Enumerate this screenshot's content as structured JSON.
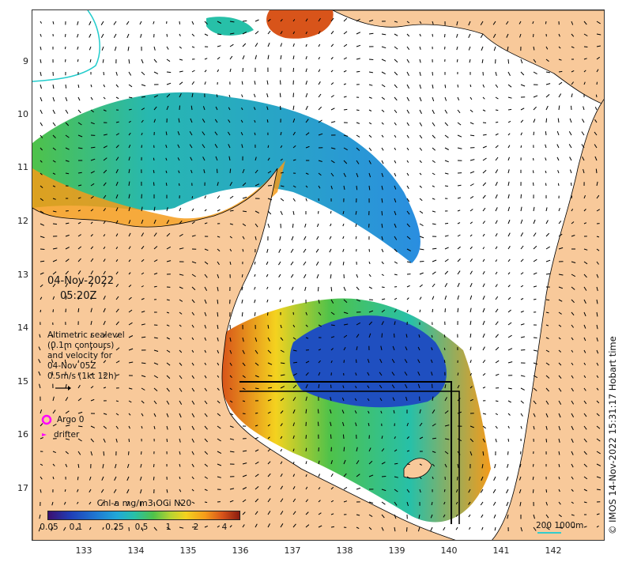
{
  "map": {
    "lat_labels": [
      "9",
      "10",
      "11",
      "12",
      "13",
      "14",
      "15",
      "16",
      "17"
    ],
    "lon_labels": [
      "133",
      "134",
      "135",
      "136",
      "137",
      "138",
      "139",
      "140",
      "141",
      "142"
    ],
    "date": "04-Nov-2022",
    "time": "05:20Z",
    "legend": {
      "line1": "Altimetric sealevel",
      "line2": "(0.1m contours)",
      "line3": "and velocity for",
      "line4": "04-Nov 05Z",
      "line5": "0.5m/s (1kt 12h)"
    },
    "argo_label": "Argo 0",
    "drifter_label": "drifter",
    "colorbar": {
      "title": "Chl-a mg/m3 OCi N20",
      "ticks": [
        "0.05",
        "0.1",
        "0.25",
        "0.5",
        "1",
        "2",
        "4"
      ]
    },
    "scale_bar": "200  1000m",
    "credit": "© IMOS 14-Nov-2022 15:31:17 Hobart time"
  },
  "colors": {
    "land": "#f8c99a",
    "ocean": "#ffffff",
    "argo": "#ff00ff",
    "track": "#000000"
  }
}
